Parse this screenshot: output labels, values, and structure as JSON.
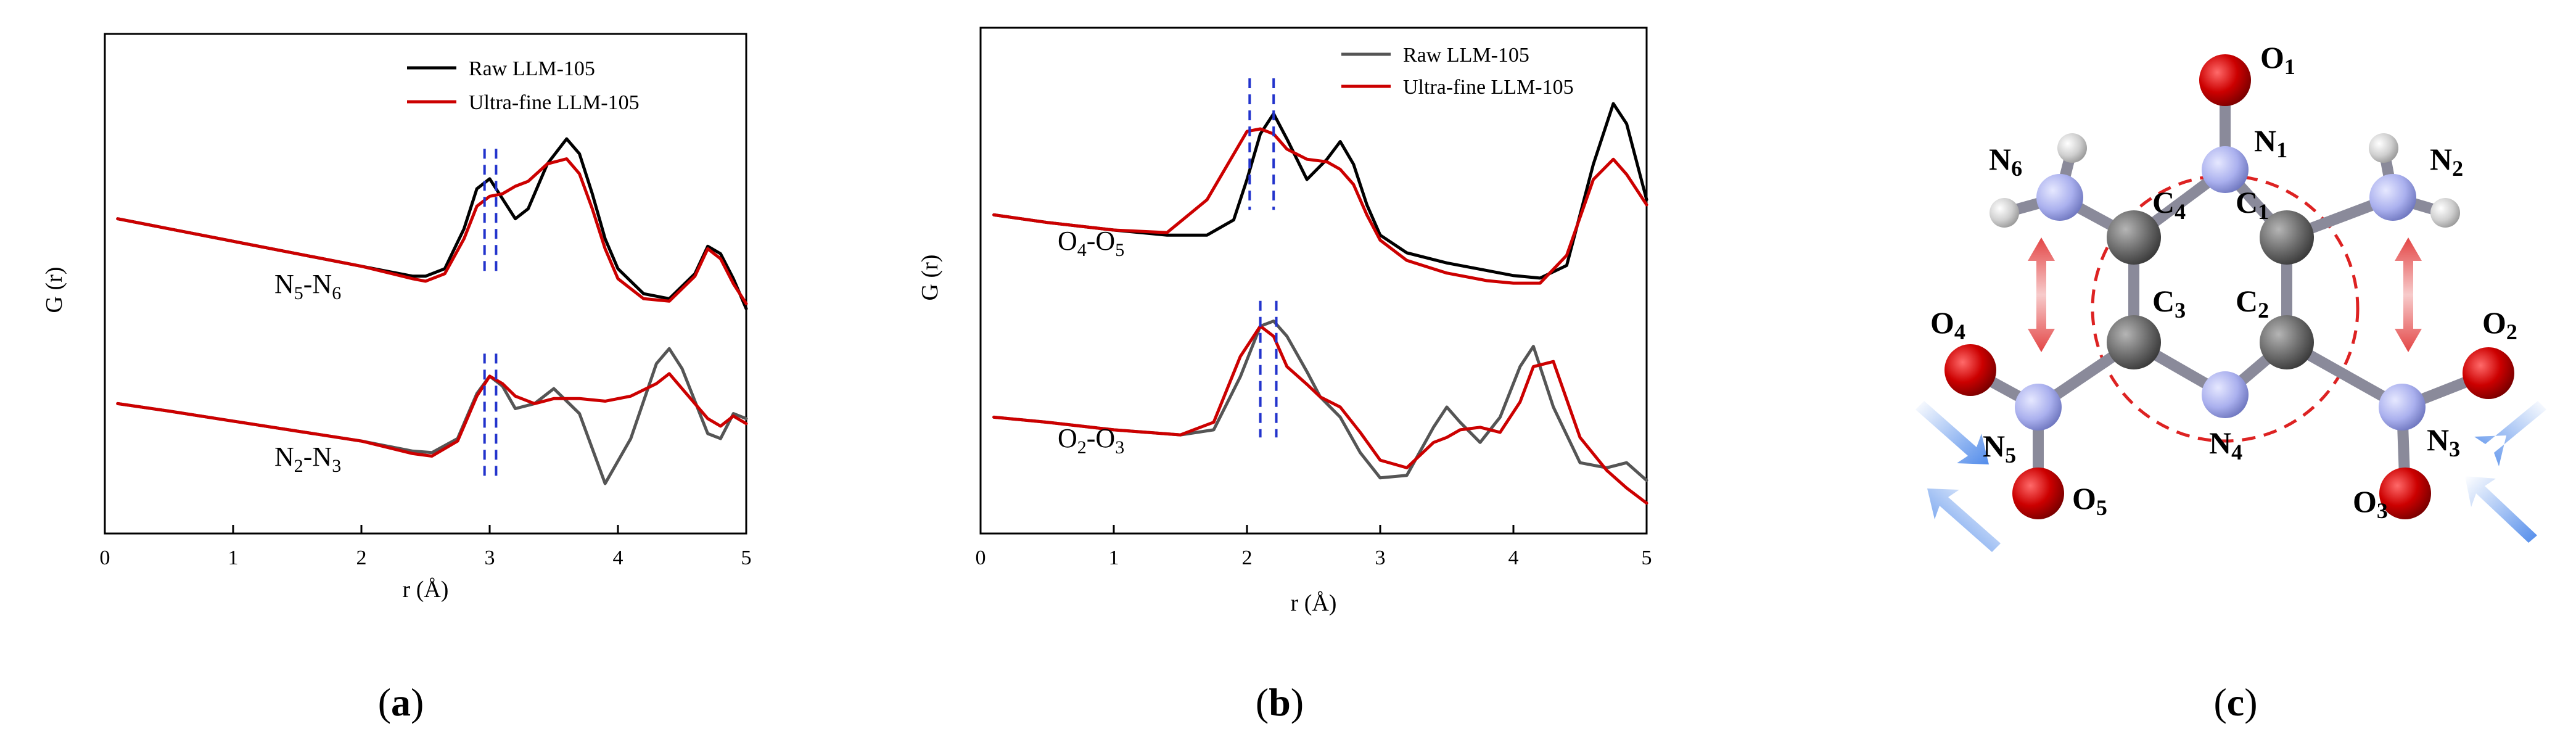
{
  "colors": {
    "raw_a": "#000000",
    "raw_b": "#555555",
    "fine": "#cc0000",
    "marker": "#2233cc",
    "ring": "#dd2222",
    "carbon": "#6a6a6a",
    "nitrogen": "#aab0ee",
    "oxygen": "#cc0000",
    "hydrogen": "#cfcfcf",
    "red_arrow": "#e03030",
    "blue_arrow": "#3f7fe8"
  },
  "chart_data": [
    {
      "type": "line",
      "panel_label": "a",
      "xlabel": "r (Å)",
      "ylabel": "G (r)",
      "xlim": [
        0,
        5
      ],
      "xticks": [
        "0",
        "1",
        "2",
        "3",
        "4",
        "5"
      ],
      "legend": [
        "Raw LLM-105",
        "Ultra-fine LLM-105"
      ],
      "annotations": [
        {
          "base": "N",
          "sub1": "5",
          "mid": "-N",
          "sub2": "6",
          "r": 1.6
        },
        {
          "base": "N",
          "sub1": "2",
          "mid": "-N",
          "sub2": "3",
          "r": 1.6
        }
      ],
      "marker_lines": [
        2.96,
        3.05
      ],
      "series": [
        {
          "name": "Raw LLM-105 (N5-N6)",
          "x": [
            0.1,
            0.5,
            1.0,
            1.5,
            2.0,
            2.4,
            2.5,
            2.65,
            2.8,
            2.9,
            3.0,
            3.1,
            3.2,
            3.3,
            3.45,
            3.6,
            3.7,
            3.8,
            3.9,
            4.0,
            4.2,
            4.4,
            4.6,
            4.7,
            4.8,
            4.9,
            5.0
          ],
          "y": [
            6.3,
            6.1,
            5.85,
            5.6,
            5.35,
            5.15,
            5.15,
            5.3,
            6.1,
            6.9,
            7.1,
            6.7,
            6.3,
            6.5,
            7.4,
            7.9,
            7.6,
            6.8,
            5.9,
            5.3,
            4.8,
            4.7,
            5.2,
            5.75,
            5.6,
            5.1,
            4.5
          ]
        },
        {
          "name": "Ultra-fine LLM-105 (N5-N6)",
          "x": [
            0.1,
            0.5,
            1.0,
            1.5,
            2.0,
            2.4,
            2.5,
            2.65,
            2.8,
            2.9,
            3.0,
            3.1,
            3.2,
            3.3,
            3.45,
            3.6,
            3.7,
            3.8,
            3.9,
            4.0,
            4.2,
            4.4,
            4.6,
            4.7,
            4.8,
            4.9,
            5.0
          ],
          "y": [
            6.3,
            6.1,
            5.85,
            5.6,
            5.35,
            5.1,
            5.05,
            5.2,
            5.9,
            6.55,
            6.75,
            6.8,
            6.95,
            7.05,
            7.4,
            7.5,
            7.2,
            6.5,
            5.7,
            5.1,
            4.7,
            4.65,
            5.15,
            5.7,
            5.5,
            5.0,
            4.6
          ]
        },
        {
          "name": "Raw LLM-105 (N2-N3)",
          "x": [
            0.1,
            0.5,
            1.0,
            1.5,
            2.0,
            2.4,
            2.55,
            2.75,
            2.9,
            3.0,
            3.1,
            3.2,
            3.35,
            3.5,
            3.7,
            3.9,
            4.1,
            4.3,
            4.4,
            4.5,
            4.7,
            4.8,
            4.9,
            5.0
          ],
          "y": [
            2.6,
            2.45,
            2.25,
            2.05,
            1.85,
            1.65,
            1.62,
            1.9,
            2.8,
            3.15,
            2.95,
            2.5,
            2.6,
            2.9,
            2.4,
            1.0,
            1.9,
            3.4,
            3.7,
            3.3,
            2.0,
            1.9,
            2.4,
            2.3
          ]
        },
        {
          "name": "Ultra-fine LLM-105 (N2-N3)",
          "x": [
            0.1,
            0.5,
            1.0,
            1.5,
            2.0,
            2.4,
            2.55,
            2.75,
            2.9,
            3.0,
            3.1,
            3.2,
            3.35,
            3.5,
            3.7,
            3.9,
            4.1,
            4.3,
            4.4,
            4.5,
            4.7,
            4.8,
            4.9,
            5.0
          ],
          "y": [
            2.6,
            2.45,
            2.25,
            2.05,
            1.85,
            1.6,
            1.55,
            1.85,
            2.75,
            3.15,
            3.0,
            2.75,
            2.6,
            2.7,
            2.7,
            2.65,
            2.75,
            3.0,
            3.2,
            2.9,
            2.3,
            2.15,
            2.35,
            2.2
          ]
        }
      ]
    },
    {
      "type": "line",
      "panel_label": "b",
      "xlabel": "r (Å)",
      "ylabel": "G (r)",
      "xlim": [
        0,
        5
      ],
      "xticks": [
        "0",
        "1",
        "2",
        "3",
        "4",
        "5"
      ],
      "legend": [
        "Raw LLM-105",
        "Ultra-fine LLM-105"
      ],
      "annotations": [
        {
          "base": "O",
          "sub1": "4",
          "mid": "-O",
          "sub2": "5",
          "r": 0.6
        },
        {
          "base": "O",
          "sub1": "2",
          "mid": "-O",
          "sub2": "3",
          "r": 0.6
        }
      ],
      "marker_lines_upper": [
        2.02,
        2.2
      ],
      "marker_lines_lower": [
        2.1,
        2.22
      ],
      "series": [
        {
          "name": "Raw LLM-105 (O4-O5)",
          "x": [
            0.1,
            0.5,
            1.0,
            1.4,
            1.7,
            1.9,
            2.0,
            2.1,
            2.2,
            2.3,
            2.45,
            2.6,
            2.7,
            2.8,
            2.9,
            3.0,
            3.2,
            3.5,
            3.8,
            4.0,
            4.2,
            4.4,
            4.6,
            4.75,
            4.85,
            5.0
          ],
          "y": [
            6.3,
            6.15,
            6.0,
            5.9,
            5.9,
            6.2,
            7.0,
            7.9,
            8.3,
            7.8,
            7.0,
            7.4,
            7.75,
            7.3,
            6.5,
            5.9,
            5.55,
            5.35,
            5.2,
            5.1,
            5.05,
            5.3,
            7.3,
            8.5,
            8.1,
            6.6
          ]
        },
        {
          "name": "Ultra-fine LLM-105 (O4-O5)",
          "x": [
            0.1,
            0.5,
            1.0,
            1.4,
            1.7,
            1.9,
            2.0,
            2.1,
            2.2,
            2.3,
            2.45,
            2.6,
            2.7,
            2.8,
            2.9,
            3.0,
            3.2,
            3.5,
            3.8,
            4.0,
            4.2,
            4.4,
            4.6,
            4.75,
            4.85,
            5.0
          ],
          "y": [
            6.3,
            6.15,
            6.0,
            5.95,
            6.6,
            7.5,
            7.95,
            8.0,
            7.9,
            7.6,
            7.4,
            7.35,
            7.2,
            6.9,
            6.3,
            5.8,
            5.4,
            5.15,
            5.0,
            4.95,
            4.95,
            5.5,
            7.0,
            7.4,
            7.1,
            6.5
          ]
        },
        {
          "name": "Raw LLM-105 (O2-O3)",
          "x": [
            0.1,
            0.5,
            1.0,
            1.5,
            1.75,
            1.95,
            2.1,
            2.2,
            2.3,
            2.45,
            2.55,
            2.7,
            2.85,
            3.0,
            3.2,
            3.4,
            3.5,
            3.6,
            3.75,
            3.9,
            4.05,
            4.15,
            4.3,
            4.5,
            4.7,
            4.85,
            5.0
          ],
          "y": [
            2.3,
            2.2,
            2.05,
            1.95,
            2.05,
            3.1,
            4.1,
            4.2,
            3.9,
            3.2,
            2.7,
            2.3,
            1.6,
            1.1,
            1.15,
            2.1,
            2.5,
            2.2,
            1.8,
            2.3,
            3.3,
            3.7,
            2.5,
            1.4,
            1.3,
            1.4,
            1.05
          ]
        },
        {
          "name": "Ultra-fine LLM-105 (O2-O3)",
          "x": [
            0.1,
            0.5,
            1.0,
            1.5,
            1.75,
            1.95,
            2.1,
            2.2,
            2.3,
            2.45,
            2.55,
            2.7,
            2.85,
            3.0,
            3.2,
            3.4,
            3.5,
            3.6,
            3.75,
            3.9,
            4.05,
            4.15,
            4.3,
            4.5,
            4.7,
            4.85,
            5.0
          ],
          "y": [
            2.3,
            2.2,
            2.05,
            1.95,
            2.2,
            3.5,
            4.1,
            3.9,
            3.3,
            2.95,
            2.7,
            2.5,
            2.0,
            1.45,
            1.3,
            1.8,
            1.9,
            2.05,
            2.1,
            2.0,
            2.6,
            3.3,
            3.4,
            1.9,
            1.25,
            0.9,
            0.6
          ]
        }
      ]
    }
  ],
  "molecule": {
    "panel_label": "c",
    "labels": [
      {
        "base": "O",
        "sub": "1"
      },
      {
        "base": "N",
        "sub": "1"
      },
      {
        "base": "N",
        "sub": "6"
      },
      {
        "base": "N",
        "sub": "2"
      },
      {
        "base": "C",
        "sub": "4"
      },
      {
        "base": "C",
        "sub": "1"
      },
      {
        "base": "C",
        "sub": "3"
      },
      {
        "base": "C",
        "sub": "2"
      },
      {
        "base": "O",
        "sub": "4"
      },
      {
        "base": "O",
        "sub": "2"
      },
      {
        "base": "N",
        "sub": "5"
      },
      {
        "base": "N",
        "sub": "3"
      },
      {
        "base": "N",
        "sub": "4"
      },
      {
        "base": "O",
        "sub": "5"
      },
      {
        "base": "O",
        "sub": "3"
      }
    ]
  }
}
